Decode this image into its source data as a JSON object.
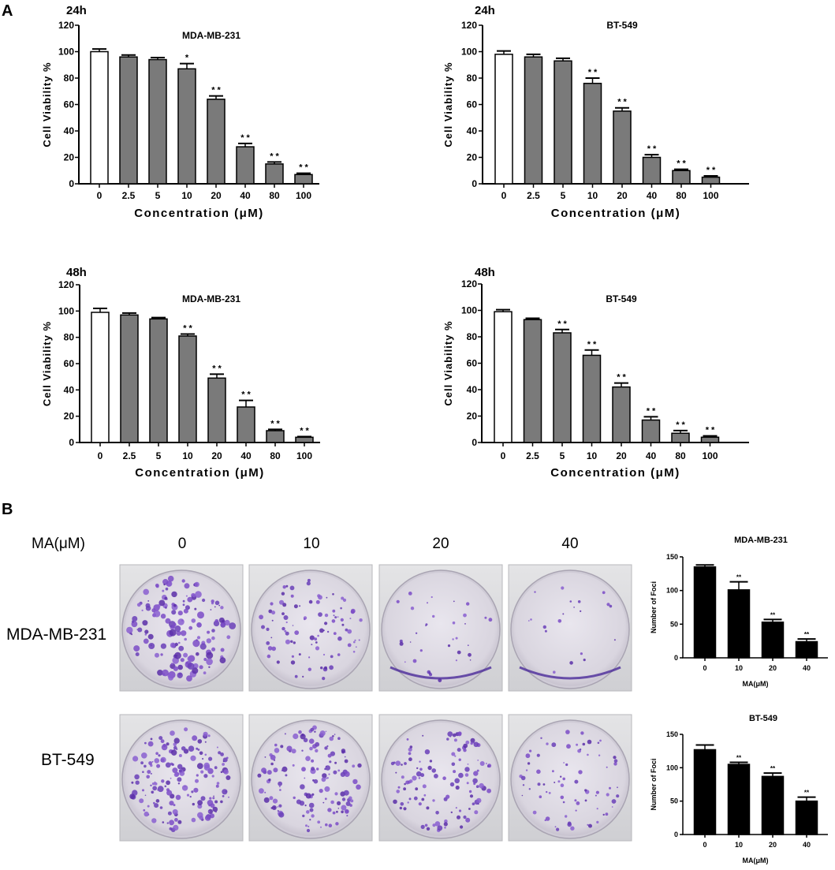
{
  "panel_a_label": "A",
  "panel_b_label": "B",
  "chart_data": [
    {
      "type": "bar",
      "time": "24h",
      "title": "MDA-MB-231",
      "xlabel": "Concentration (μM)",
      "ylabel": "Cell Viability %",
      "ylim": [
        0,
        120
      ],
      "yticks": [
        "0",
        "20",
        "40",
        "60",
        "80",
        "100",
        "120"
      ],
      "categories": [
        "0",
        "2.5",
        "5",
        "10",
        "20",
        "40",
        "80",
        "100"
      ],
      "values": [
        100,
        96,
        94,
        87,
        64,
        28,
        15,
        7
      ],
      "errors": [
        2,
        1.5,
        1.5,
        4,
        2.5,
        2.5,
        1.5,
        1
      ],
      "significance": [
        "",
        "",
        "",
        "*",
        "* *",
        "* *",
        "* *",
        "* *"
      ],
      "colors": [
        "#ffffff",
        "#7a7a7a",
        "#7a7a7a",
        "#7a7a7a",
        "#7a7a7a",
        "#7a7a7a",
        "#7a7a7a",
        "#7a7a7a"
      ]
    },
    {
      "type": "bar",
      "time": "24h",
      "title": "BT-549",
      "xlabel": "Concentration (μM)",
      "ylabel": "Cell Viability %",
      "ylim": [
        0,
        120
      ],
      "yticks": [
        "0",
        "20",
        "40",
        "60",
        "80",
        "100",
        "120"
      ],
      "categories": [
        "0",
        "2.5",
        "5",
        "10",
        "20",
        "40",
        "80",
        "100"
      ],
      "values": [
        98,
        96,
        93,
        76,
        55,
        20,
        10,
        5
      ],
      "errors": [
        2.5,
        2,
        2,
        4,
        2.5,
        2,
        1,
        1
      ],
      "significance": [
        "",
        "",
        "",
        "* *",
        "* *",
        "* *",
        "* *",
        "* *"
      ],
      "colors": [
        "#ffffff",
        "#7a7a7a",
        "#7a7a7a",
        "#7a7a7a",
        "#7a7a7a",
        "#7a7a7a",
        "#7a7a7a",
        "#7a7a7a"
      ]
    },
    {
      "type": "bar",
      "time": "48h",
      "title": "MDA-MB-231",
      "xlabel": "Concentration (μM)",
      "ylabel": "Cell Viability %",
      "ylim": [
        0,
        120
      ],
      "yticks": [
        "0",
        "20",
        "40",
        "60",
        "80",
        "100",
        "120"
      ],
      "categories": [
        "0",
        "2.5",
        "5",
        "10",
        "20",
        "40",
        "80",
        "100"
      ],
      "values": [
        99,
        97,
        94,
        81,
        49,
        27,
        9,
        4
      ],
      "errors": [
        3,
        1.5,
        1,
        1.5,
        3,
        5,
        1,
        0.5
      ],
      "significance": [
        "",
        "",
        "",
        "* *",
        "* *",
        "* *",
        "* *",
        "* *"
      ],
      "colors": [
        "#ffffff",
        "#7a7a7a",
        "#7a7a7a",
        "#7a7a7a",
        "#7a7a7a",
        "#7a7a7a",
        "#7a7a7a",
        "#7a7a7a"
      ]
    },
    {
      "type": "bar",
      "time": "48h",
      "title": "BT-549",
      "xlabel": "Concentration (μM)",
      "ylabel": "Cell Viability %",
      "ylim": [
        0,
        120
      ],
      "yticks": [
        "0",
        "20",
        "40",
        "60",
        "80",
        "100",
        "120"
      ],
      "categories": [
        "0",
        "2.5",
        "5",
        "10",
        "20",
        "40",
        "80",
        "100"
      ],
      "values": [
        99,
        93,
        83,
        66,
        42,
        17,
        7,
        4
      ],
      "errors": [
        1.5,
        1,
        2.5,
        4,
        3,
        2.5,
        2,
        1
      ],
      "significance": [
        "",
        "",
        "* *",
        "* *",
        "* *",
        "* *",
        "* *",
        "* *"
      ],
      "colors": [
        "#ffffff",
        "#7a7a7a",
        "#7a7a7a",
        "#7a7a7a",
        "#7a7a7a",
        "#7a7a7a",
        "#7a7a7a",
        "#7a7a7a"
      ]
    },
    {
      "type": "bar",
      "title": "MDA-MB-231",
      "xlabel": "MA(μM)",
      "ylabel": "Number of Foci",
      "ylim": [
        0,
        150
      ],
      "yticks": [
        "0",
        "50",
        "100",
        "150"
      ],
      "categories": [
        "0",
        "10",
        "20",
        "40"
      ],
      "values": [
        135,
        101,
        53,
        24
      ],
      "errors": [
        3,
        12,
        4,
        4
      ],
      "significance": [
        "",
        "**",
        "**",
        "**"
      ],
      "colors": [
        "#000000",
        "#000000",
        "#000000",
        "#000000"
      ]
    },
    {
      "type": "bar",
      "title": "BT-549",
      "xlabel": "MA(μM)",
      "ylabel": "Number of Foci",
      "ylim": [
        0,
        150
      ],
      "yticks": [
        "0",
        "50",
        "100",
        "150"
      ],
      "categories": [
        "0",
        "10",
        "20",
        "40"
      ],
      "values": [
        127,
        105,
        87,
        50
      ],
      "errors": [
        7,
        3,
        5,
        6
      ],
      "significance": [
        "",
        "**",
        "**",
        "**"
      ],
      "colors": [
        "#000000",
        "#000000",
        "#000000",
        "#000000"
      ]
    }
  ],
  "colony_assay": {
    "ma_label": "MA(μM)",
    "concentrations": [
      "0",
      "10",
      "20",
      "40"
    ],
    "rows": [
      "MDA-MB-231",
      "BT-549"
    ],
    "density": [
      [
        0.95,
        0.55,
        0.2,
        0.12
      ],
      [
        1.0,
        0.85,
        0.7,
        0.45
      ]
    ]
  }
}
